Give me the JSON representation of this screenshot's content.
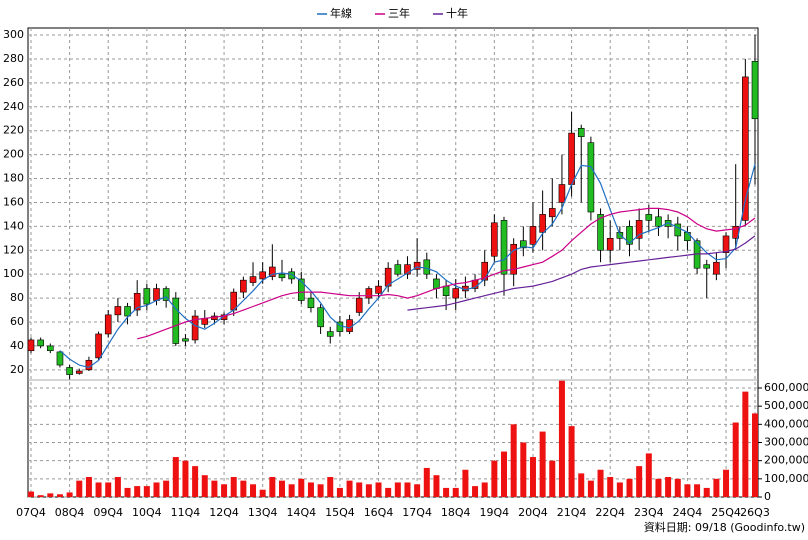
{
  "chart_data": {
    "type": "candlestick",
    "categories": [
      "07Q4",
      null,
      null,
      null,
      "08Q4",
      null,
      null,
      null,
      "09Q4",
      null,
      null,
      null,
      "10Q4",
      null,
      null,
      null,
      "11Q4",
      null,
      null,
      null,
      "12Q4",
      null,
      null,
      null,
      "13Q4",
      null,
      null,
      null,
      "14Q4",
      null,
      null,
      null,
      "15Q4",
      null,
      null,
      null,
      "16Q4",
      null,
      null,
      null,
      "17Q4",
      null,
      null,
      null,
      "18Q4",
      null,
      null,
      null,
      "19Q4",
      null,
      null,
      null,
      "20Q4",
      null,
      null,
      null,
      "21Q4",
      null,
      null,
      null,
      "22Q4",
      null,
      null,
      null,
      "23Q4",
      null,
      null,
      null,
      "24Q4",
      null,
      null,
      null,
      "25Q4",
      null,
      null,
      "26Q3"
    ],
    "open": [
      36,
      45,
      40,
      35,
      22,
      17,
      20,
      30,
      50,
      66,
      73,
      70,
      88,
      78,
      88,
      80,
      46,
      45,
      58,
      62,
      62,
      70,
      85,
      93,
      96,
      98,
      100,
      102,
      96,
      80,
      72,
      52,
      60,
      52,
      68,
      80,
      84,
      90,
      108,
      100,
      104,
      112,
      96,
      90,
      80,
      86,
      88,
      95,
      115,
      145,
      100,
      128,
      125,
      135,
      148,
      160,
      175,
      222,
      210,
      150,
      120,
      135,
      140,
      130,
      150,
      148,
      145,
      142,
      135,
      128,
      108,
      100,
      118,
      130,
      145,
      278
    ],
    "high": [
      47,
      47,
      42,
      36,
      24,
      21,
      31,
      52,
      70,
      80,
      76,
      95,
      92,
      92,
      90,
      85,
      50,
      70,
      70,
      68,
      68,
      88,
      98,
      110,
      110,
      125,
      112,
      105,
      102,
      85,
      75,
      56,
      65,
      66,
      85,
      90,
      95,
      110,
      112,
      115,
      130,
      118,
      100,
      95,
      96,
      98,
      100,
      120,
      150,
      148,
      130,
      140,
      160,
      170,
      180,
      200,
      236,
      225,
      215,
      155,
      145,
      140,
      145,
      155,
      158,
      155,
      150,
      148,
      140,
      130,
      112,
      118,
      135,
      192,
      280,
      300
    ],
    "low": [
      34,
      38,
      34,
      22,
      12,
      16,
      19,
      28,
      47,
      60,
      58,
      65,
      70,
      74,
      72,
      40,
      40,
      42,
      55,
      58,
      58,
      65,
      80,
      90,
      92,
      95,
      94,
      92,
      75,
      68,
      50,
      42,
      48,
      50,
      65,
      75,
      80,
      85,
      98,
      96,
      98,
      96,
      80,
      70,
      70,
      80,
      85,
      90,
      110,
      82,
      90,
      115,
      118,
      120,
      140,
      150,
      165,
      160,
      145,
      110,
      110,
      120,
      115,
      120,
      135,
      132,
      130,
      120,
      120,
      100,
      80,
      95,
      105,
      120,
      140,
      175
    ],
    "close": [
      45,
      40,
      36,
      24,
      16,
      19,
      28,
      50,
      66,
      73,
      65,
      84,
      75,
      88,
      78,
      42,
      44,
      65,
      63,
      65,
      66,
      85,
      95,
      98,
      102,
      106,
      97,
      96,
      78,
      72,
      56,
      48,
      52,
      62,
      80,
      88,
      90,
      105,
      100,
      108,
      110,
      100,
      88,
      82,
      88,
      90,
      95,
      110,
      143,
      100,
      125,
      122,
      140,
      150,
      155,
      175,
      218,
      215,
      152,
      120,
      130,
      130,
      125,
      145,
      145,
      140,
      140,
      132,
      128,
      105,
      105,
      110,
      132,
      140,
      265,
      230
    ],
    "up_color": "#ee1111",
    "down_color": "#22bb22",
    "series": [
      {
        "name": "年線",
        "color": "#1f6fc4",
        "values": [
          null,
          null,
          null,
          36,
          29,
          24,
          22,
          28,
          41,
          54,
          64,
          72,
          74,
          78,
          81,
          71,
          63,
          57,
          54,
          59,
          65,
          70,
          78,
          86,
          95,
          100,
          101,
          100,
          94,
          86,
          76,
          64,
          57,
          55,
          61,
          71,
          80,
          91,
          96,
          101,
          106,
          105,
          102,
          95,
          90,
          87,
          89,
          96,
          110,
          112,
          120,
          123,
          122,
          134,
          142,
          155,
          175,
          191,
          190,
          176,
          154,
          133,
          126,
          133,
          136,
          139,
          143,
          139,
          135,
          126,
          118,
          112,
          113,
          122,
          162,
          192
        ]
      },
      {
        "name": "三年",
        "color": "#cc0088",
        "values": [
          null,
          null,
          null,
          null,
          null,
          null,
          null,
          null,
          null,
          null,
          null,
          46,
          48,
          51,
          54,
          57,
          60,
          62,
          63,
          64,
          65,
          67,
          70,
          73,
          76,
          79,
          82,
          84,
          85,
          85,
          85,
          84,
          83,
          82,
          82,
          82,
          82,
          83,
          82,
          80,
          82,
          85,
          88,
          90,
          92,
          93,
          95,
          97,
          100,
          103,
          104,
          106,
          108,
          110,
          115,
          120,
          128,
          135,
          142,
          147,
          150,
          152,
          153,
          154,
          155,
          155,
          154,
          152,
          148,
          142,
          138,
          136,
          137,
          138,
          141,
          147
        ]
      },
      {
        "name": "十年",
        "color": "#662299",
        "values": [
          null,
          null,
          null,
          null,
          null,
          null,
          null,
          null,
          null,
          null,
          null,
          null,
          null,
          null,
          null,
          null,
          null,
          null,
          null,
          null,
          null,
          null,
          null,
          null,
          null,
          null,
          null,
          null,
          null,
          null,
          null,
          null,
          null,
          null,
          null,
          null,
          null,
          null,
          null,
          70,
          71,
          72,
          73,
          74,
          76,
          78,
          80,
          82,
          84,
          86,
          88,
          89,
          90,
          92,
          94,
          97,
          100,
          104,
          106,
          107,
          108,
          109,
          110,
          111,
          112,
          113,
          114,
          115,
          116,
          117,
          117,
          118,
          119,
          121,
          126,
          132
        ]
      }
    ],
    "ylim": [
      11.5,
      305.9
    ],
    "yticks": [
      20,
      40,
      60,
      80,
      100,
      120,
      140,
      160,
      180,
      200,
      220,
      240,
      260,
      280,
      300
    ],
    "volume": {
      "color": "#ee1111",
      "values": [
        30000,
        10000,
        20000,
        15000,
        25000,
        90000,
        110000,
        80000,
        80000,
        110000,
        50000,
        60000,
        60000,
        80000,
        90000,
        220000,
        200000,
        170000,
        120000,
        90000,
        70000,
        110000,
        90000,
        70000,
        40000,
        110000,
        90000,
        70000,
        100000,
        80000,
        70000,
        110000,
        50000,
        90000,
        80000,
        70000,
        80000,
        50000,
        80000,
        80000,
        70000,
        160000,
        120000,
        50000,
        50000,
        150000,
        60000,
        80000,
        200000,
        250000,
        400000,
        300000,
        220000,
        360000,
        200000,
        640000,
        390000,
        130000,
        90000,
        150000,
        110000,
        80000,
        100000,
        170000,
        240000,
        100000,
        110000,
        100000,
        70000,
        70000,
        50000,
        100000,
        150000,
        410000,
        580000,
        460000
      ],
      "ylim": [
        0,
        644000
      ],
      "yticks": [
        0,
        {
          "value": 100000,
          "label": "100,000"
        },
        {
          "value": 200000,
          "label": "200,000"
        },
        {
          "value": 300000,
          "label": "300,000"
        },
        {
          "value": 400000,
          "label": "400,000"
        },
        {
          "value": 500000,
          "label": "500,000"
        },
        {
          "value": 600000,
          "label": "600,000"
        }
      ]
    },
    "grid": true,
    "footnote": "資料日期: 09/18 (Goodinfo.tw)"
  }
}
